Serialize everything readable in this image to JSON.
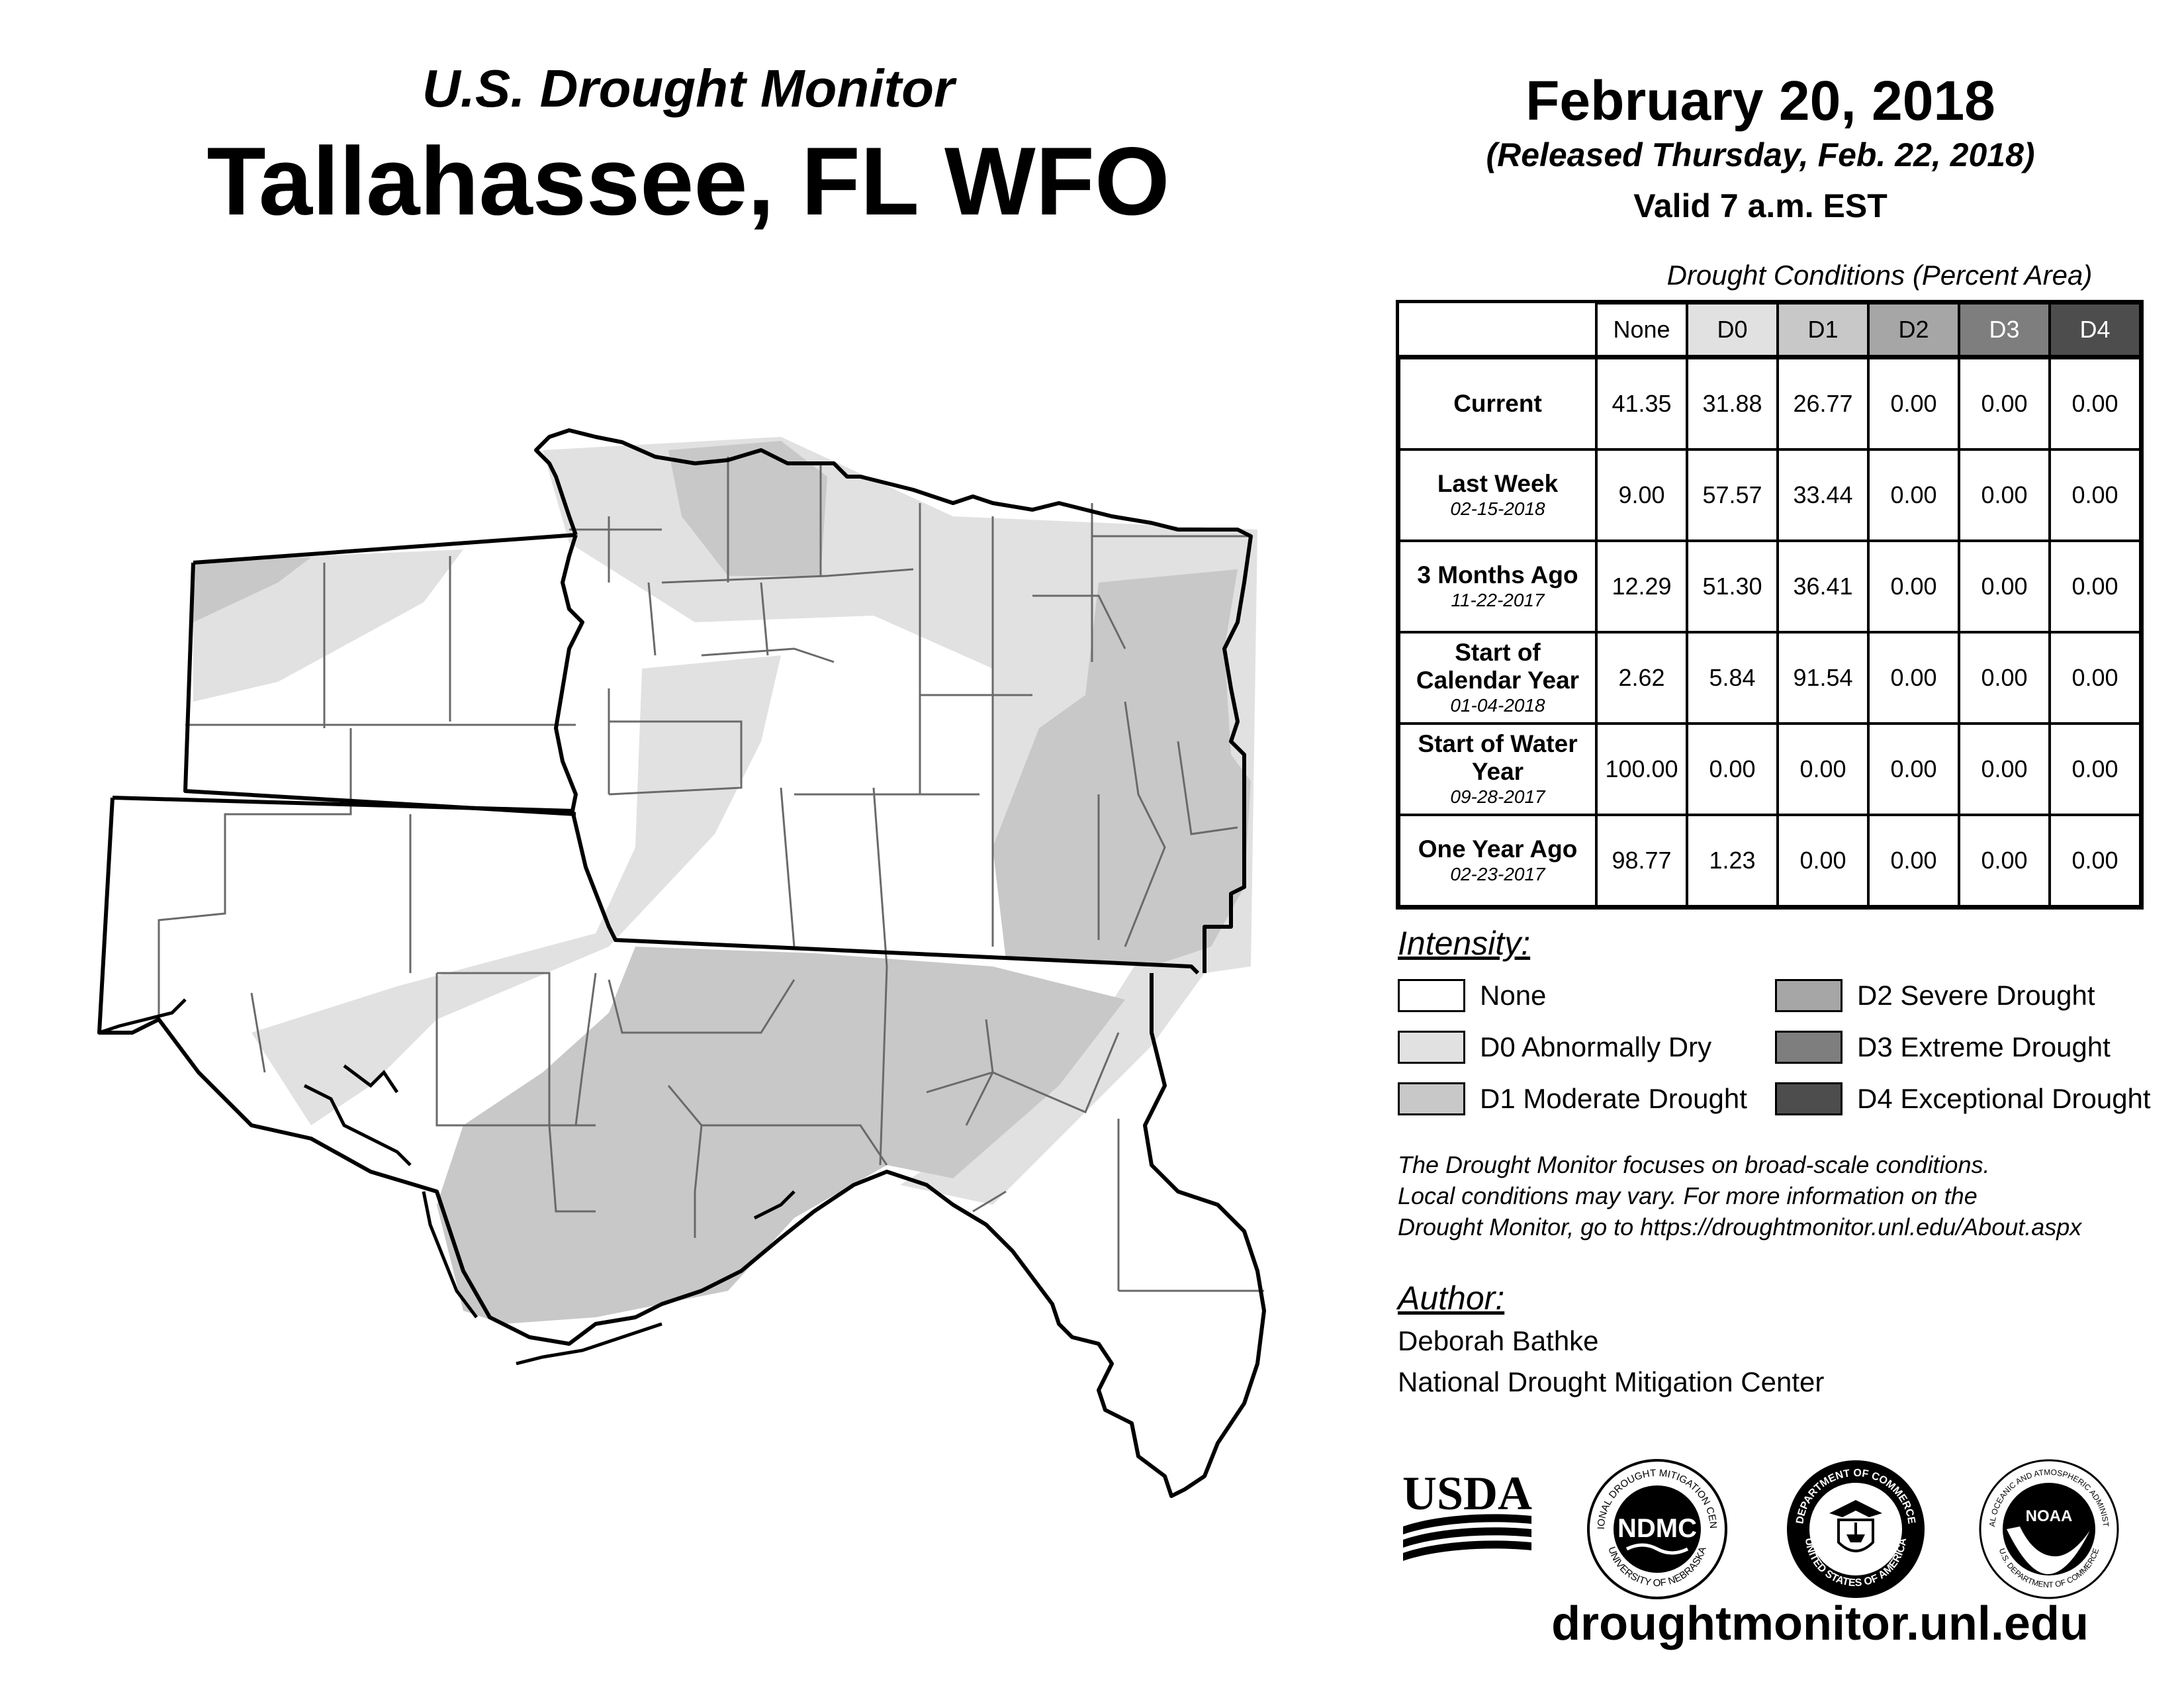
{
  "header": {
    "subtitle": "U.S. Drought Monitor",
    "title": "Tallahassee, FL WFO"
  },
  "date_block": {
    "date": "February 20, 2018",
    "released": "(Released Thursday, Feb. 22, 2018)",
    "valid": "Valid 7 a.m. EST"
  },
  "conditions_table": {
    "caption": "Drought Conditions (Percent Area)",
    "columns": [
      "None",
      "D0",
      "D1",
      "D2",
      "D3",
      "D4"
    ],
    "column_colors": [
      "#ffffff",
      "#e1e1e1",
      "#c8c8c8",
      "#a6a6a6",
      "#7e7e7e",
      "#4d4d4d"
    ],
    "rows": [
      {
        "label": "Current",
        "date": "",
        "values": [
          "41.35",
          "31.88",
          "26.77",
          "0.00",
          "0.00",
          "0.00"
        ]
      },
      {
        "label": "Last Week",
        "date": "02-15-2018",
        "values": [
          "9.00",
          "57.57",
          "33.44",
          "0.00",
          "0.00",
          "0.00"
        ]
      },
      {
        "label": "3 Months Ago",
        "date": "11-22-2017",
        "values": [
          "12.29",
          "51.30",
          "36.41",
          "0.00",
          "0.00",
          "0.00"
        ]
      },
      {
        "label": "Start of Calendar Year",
        "date": "01-04-2018",
        "values": [
          "2.62",
          "5.84",
          "91.54",
          "0.00",
          "0.00",
          "0.00"
        ]
      },
      {
        "label": "Start of Water Year",
        "date": "09-28-2017",
        "values": [
          "100.00",
          "0.00",
          "0.00",
          "0.00",
          "0.00",
          "0.00"
        ]
      },
      {
        "label": "One Year Ago",
        "date": "02-23-2017",
        "values": [
          "98.77",
          "1.23",
          "0.00",
          "0.00",
          "0.00",
          "0.00"
        ]
      }
    ]
  },
  "legend": {
    "title": "Intensity:",
    "items": [
      {
        "label": "None",
        "color": "#ffffff"
      },
      {
        "label": "D0 Abnormally Dry",
        "color": "#e1e1e1"
      },
      {
        "label": "D1 Moderate Drought",
        "color": "#c8c8c8"
      },
      {
        "label": "D2 Severe Drought",
        "color": "#a6a6a6"
      },
      {
        "label": "D3 Extreme Drought",
        "color": "#7e7e7e"
      },
      {
        "label": "D4 Exceptional Drought",
        "color": "#4d4d4d"
      }
    ]
  },
  "note": {
    "line1": "The Drought Monitor focuses on broad-scale conditions.",
    "line2": "Local conditions may vary. For more information on the",
    "line3": "Drought Monitor, go to https://droughtmonitor.unl.edu/About.aspx"
  },
  "author": {
    "title": "Author:",
    "name": "Deborah Bathke",
    "org": "National Drought Mitigation Center"
  },
  "logos": {
    "usda": "USDA",
    "ndmc": "NDMC",
    "ndmc_ring_top": "NATIONAL DROUGHT MITIGATION CENTER",
    "ndmc_ring_bottom": "UNIVERSITY OF NEBRASKA",
    "doc_ring_top": "DEPARTMENT OF COMMERCE",
    "doc_ring_bottom": "UNITED STATES OF AMERICA",
    "noaa": "NOAA",
    "noaa_ring_top": "NATIONAL OCEANIC AND ATMOSPHERIC ADMINISTRATION",
    "noaa_ring_bottom": "U.S. DEPARTMENT OF COMMERCE"
  },
  "website": "droughtmonitor.unl.edu"
}
